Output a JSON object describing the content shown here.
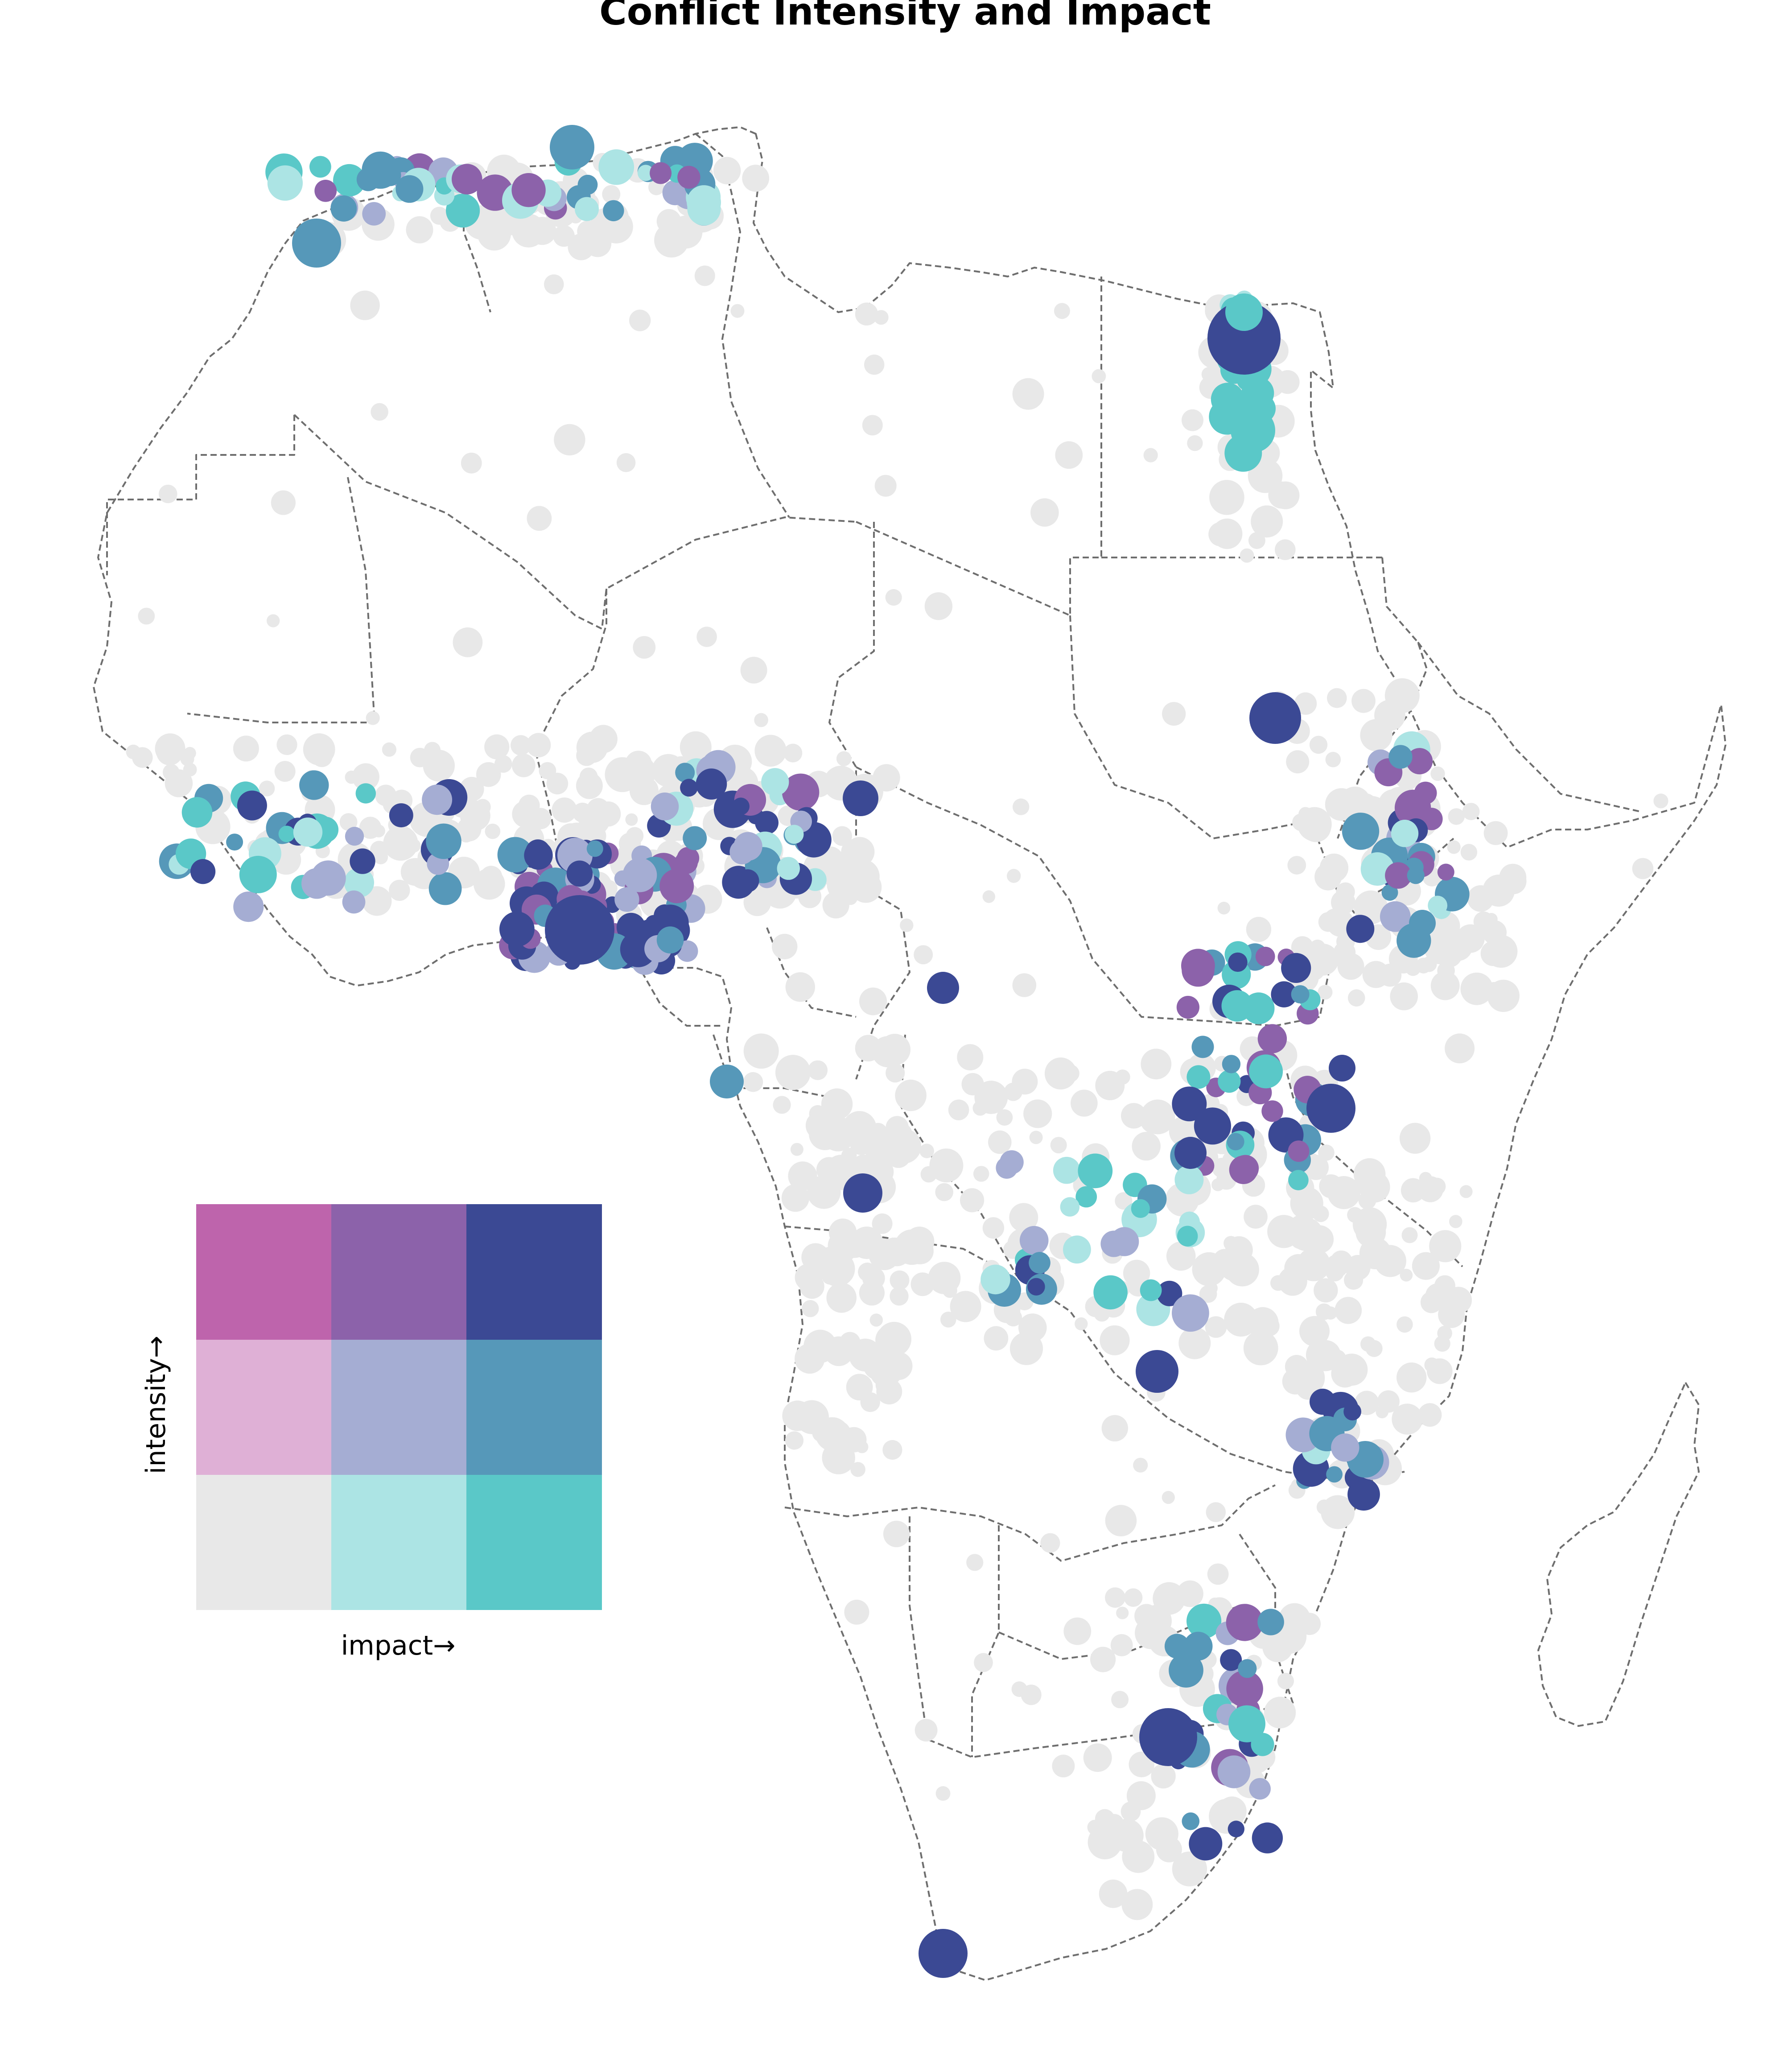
{
  "title": "Conflict Intensity and Impact",
  "legend": {
    "x_label": "impact→",
    "y_label": "intensity→",
    "colors": [
      [
        "#e8e8e8",
        "#ace4e4",
        "#5ac8c8"
      ],
      [
        "#dfb0d6",
        "#a5add3",
        "#5698b9"
      ],
      [
        "#be64ac",
        "#8c62aa",
        "#3b4994"
      ]
    ]
  },
  "chart_data": {
    "type": "scatter",
    "encoding": "bivariate color: intensity (low/mid/high) x impact (low/mid/high); marker size scales with event magnitude",
    "region": "Africa",
    "notable_clusters": [
      {
        "area": "Nigeria",
        "intensity": "high",
        "impact": "high"
      },
      {
        "area": "Cairo, Egypt",
        "intensity": "high",
        "impact": "high"
      },
      {
        "area": "Nile valley, Egypt",
        "intensity": "low",
        "impact": "high"
      },
      {
        "area": "Great Lakes / eastern DRC",
        "intensity": "high",
        "impact": "high"
      },
      {
        "area": "Johannesburg, South Africa",
        "intensity": "high",
        "impact": "high"
      },
      {
        "area": "Cape Town, South Africa",
        "intensity": "high",
        "impact": "high"
      },
      {
        "area": "Mediterranean coast of the Maghreb",
        "intensity": "mixed",
        "impact": "mixed"
      }
    ]
  }
}
